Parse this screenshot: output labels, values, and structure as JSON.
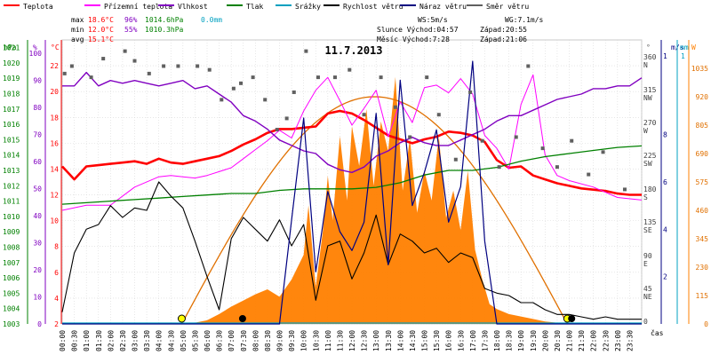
{
  "chart_data": {
    "type": "line",
    "title": "11.7.2013",
    "legend": [
      {
        "name": "Teplota",
        "color": "#ff0000"
      },
      {
        "name": "Přízemní teplota",
        "color": "#ff00ff"
      },
      {
        "name": "Vlhkost",
        "color": "#8000c0"
      },
      {
        "name": "Tlak",
        "color": "#008000"
      },
      {
        "name": "Srážky",
        "color": "#00a0c0"
      },
      {
        "name": "Rychlost větru",
        "color": "#000000"
      },
      {
        "name": "Náraz větru",
        "color": "#000080"
      },
      {
        "name": "Směr větru",
        "color": "#606060"
      }
    ],
    "stats": {
      "max": {
        "label": "max",
        "temp": "18.6°C",
        "hum": "96%",
        "press": "1014.6hPa",
        "rain": "0.0mm"
      },
      "min": {
        "label": "min",
        "temp": "12.0°C",
        "hum": "55%",
        "press": "1010.3hPa"
      },
      "avg": {
        "label": "avg",
        "temp": "15.1°C"
      },
      "ws": "WS:5m/s",
      "wg": "WG:7.1m/s",
      "sun_rise": "Slunce Východ:04:57",
      "sun_set": "Západ:20:55",
      "moon_rise": "Měsíc  Východ:7:28",
      "moon_set": "Západ:21:06"
    },
    "axis_units": {
      "press": "hPa",
      "hum": "%",
      "temp": "°C",
      "dir": "°",
      "wind": "m/s",
      "rain": "mm",
      "solar": "W",
      "time": "čas"
    },
    "pressure_ticks": [
      "1021",
      "1020",
      "1019",
      "1018",
      "1017",
      "1016",
      "1015",
      "1014",
      "1013",
      "1012",
      "1011",
      "1010",
      "1009",
      "1008",
      "1007",
      "1006",
      "1005",
      "1004",
      "1003"
    ],
    "humidity_ticks": [
      "100",
      "90",
      "80",
      "70",
      "60",
      "50",
      "40",
      "30",
      "20",
      "10",
      "0"
    ],
    "temp_ticks": [
      "22",
      "20",
      "18",
      "16",
      "14",
      "12",
      "10",
      "8",
      "6",
      "4",
      "2"
    ],
    "dir_ticks": [
      "360",
      "N",
      "315",
      "NW",
      "270",
      "W",
      "225",
      "SW",
      "180",
      "S",
      "135",
      "SE",
      "90",
      "E",
      "45",
      "NE",
      "0"
    ],
    "wind_ticks": [
      "1",
      "8",
      "6",
      "4",
      "2"
    ],
    "rain_ticks": [
      "1"
    ],
    "solar_ticks": [
      "1035",
      "920",
      "805",
      "690",
      "575",
      "460",
      "345",
      "230",
      "115",
      "0"
    ],
    "time_labels": [
      "00:00",
      "00:30",
      "01:00",
      "01:30",
      "02:00",
      "02:30",
      "03:00",
      "03:30",
      "04:00",
      "04:30",
      "05:00",
      "05:30",
      "06:00",
      "06:30",
      "07:00",
      "07:30",
      "08:00",
      "08:30",
      "09:00",
      "09:30",
      "10:00",
      "10:30",
      "11:00",
      "11:30",
      "12:00",
      "12:30",
      "13:00",
      "13:30",
      "14:00",
      "14:30",
      "15:00",
      "15:30",
      "16:00",
      "16:30",
      "17:00",
      "17:30",
      "18:00",
      "18:30",
      "19:00",
      "19:30",
      "20:00",
      "20:30",
      "21:00",
      "21:30",
      "22:00",
      "22:30",
      "23:00",
      "23:30"
    ],
    "ranges": {
      "temp": [
        2,
        24
      ],
      "hum": [
        0,
        105
      ],
      "press": [
        1003,
        1021.5
      ],
      "dir": [
        0,
        380
      ],
      "wind": [
        0,
        12
      ],
      "solar": [
        0,
        1150
      ]
    },
    "series": [
      {
        "name": "Teplota",
        "hours": [
          0,
          0.5,
          1,
          1.5,
          2,
          2.5,
          3,
          3.5,
          4,
          4.5,
          5,
          5.5,
          6,
          6.5,
          7,
          7.5,
          8,
          8.5,
          9,
          9.5,
          10,
          10.5,
          11,
          11.5,
          12,
          12.5,
          13,
          13.5,
          14,
          14.5,
          15,
          15.5,
          16,
          16.5,
          17,
          17.5,
          18,
          18.5,
          19,
          19.5,
          20,
          20.5,
          21,
          21.5,
          22,
          22.5,
          23,
          23.5,
          24
        ],
        "values": [
          14.2,
          13.2,
          14.2,
          14.3,
          14.4,
          14.5,
          14.6,
          14.4,
          14.8,
          14.5,
          14.4,
          14.6,
          14.8,
          15.0,
          15.4,
          15.9,
          16.3,
          16.8,
          17.1,
          17.1,
          17.2,
          17.3,
          18.3,
          18.5,
          18.3,
          17.8,
          17.2,
          16.6,
          16.3,
          16.0,
          16.3,
          16.5,
          16.9,
          16.8,
          16.6,
          16.1,
          14.7,
          14.1,
          14.2,
          13.5,
          13.2,
          12.9,
          12.7,
          12.5,
          12.4,
          12.3,
          12.1,
          12.0,
          12.0
        ]
      },
      {
        "name": "Přízemní teplota",
        "hours": [
          0,
          1,
          2,
          3,
          4,
          4.5,
          5,
          5.5,
          6,
          6.5,
          7,
          7.5,
          8,
          8.5,
          9,
          9.5,
          10,
          10.5,
          11,
          11.5,
          12,
          12.5,
          13,
          13.5,
          14,
          14.5,
          15,
          15.5,
          16,
          16.5,
          17,
          17.5,
          18,
          18.5,
          19,
          19.5,
          20,
          20.5,
          21,
          22,
          23,
          24
        ],
        "values": [
          10.8,
          11.2,
          11.2,
          12.6,
          13.4,
          13.5,
          13.4,
          13.3,
          13.5,
          13.8,
          14.1,
          14.8,
          15.5,
          16.2,
          17.0,
          16.4,
          18.5,
          20.1,
          21.1,
          19.3,
          17.4,
          18.7,
          20.1,
          16.5,
          19.2,
          17.6,
          20.3,
          20.5,
          19.9,
          21.0,
          19.8,
          16.6,
          15.6,
          14.0,
          19.0,
          21.3,
          15.1,
          13.5,
          13.1,
          12.6,
          11.8,
          11.6
        ]
      },
      {
        "name": "Vlhkost",
        "hours": [
          0,
          0.5,
          1,
          1.5,
          2,
          2.5,
          3,
          3.5,
          4,
          4.5,
          5,
          5.5,
          6,
          6.5,
          7,
          7.5,
          8,
          8.5,
          9,
          9.5,
          10,
          10.5,
          11,
          11.5,
          12,
          12.5,
          13,
          13.5,
          14,
          14.5,
          15,
          15.5,
          16,
          16.5,
          17,
          17.5,
          18,
          18.5,
          19,
          19.5,
          20,
          20.5,
          21,
          21.5,
          22,
          22.5,
          23,
          23.5,
          24
        ],
        "values": [
          88,
          88,
          93,
          88,
          90,
          89,
          90,
          89,
          88,
          89,
          90,
          87,
          88,
          85,
          82,
          77,
          75,
          72,
          68,
          66,
          64,
          63,
          59,
          57,
          56,
          58,
          62,
          64,
          67,
          69,
          67,
          66,
          66,
          68,
          70,
          72,
          75,
          77,
          77,
          79,
          81,
          83,
          84,
          85,
          87,
          87,
          88,
          88,
          91
        ]
      },
      {
        "name": "Tlak",
        "hours": [
          0,
          1,
          2,
          3,
          4,
          5,
          6,
          7,
          8,
          9,
          10,
          11,
          12,
          13,
          14,
          15,
          16,
          17,
          18,
          19,
          20,
          21,
          22,
          23,
          24
        ],
        "values": [
          1010.8,
          1010.9,
          1011.0,
          1011.1,
          1011.2,
          1011.3,
          1011.4,
          1011.5,
          1011.5,
          1011.7,
          1011.8,
          1011.8,
          1011.8,
          1011.9,
          1012.2,
          1012.7,
          1013.0,
          1013.0,
          1013.2,
          1013.6,
          1013.9,
          1014.1,
          1014.3,
          1014.5,
          1014.6
        ]
      },
      {
        "name": "Srážky",
        "hours": [
          0,
          24
        ],
        "values": [
          0,
          0
        ]
      },
      {
        "name": "Rychlost větru",
        "hours": [
          0,
          0.5,
          1,
          1.5,
          2,
          2.5,
          3,
          3.5,
          4,
          4.5,
          5,
          5.5,
          6,
          6.5,
          7,
          7.5,
          8,
          8.5,
          9,
          9.5,
          10,
          10.5,
          11,
          11.5,
          12,
          12.5,
          13,
          13.5,
          14,
          14.5,
          15,
          15.5,
          16,
          16.5,
          17,
          17.5,
          18,
          18.5,
          19,
          19.5,
          20,
          20.5,
          21,
          21.5,
          22,
          22.5,
          23,
          23.5,
          24
        ],
        "values": [
          0.5,
          3.0,
          4.0,
          4.2,
          5.0,
          4.5,
          4.9,
          4.8,
          6.0,
          5.4,
          4.9,
          3.5,
          2.0,
          0.6,
          3.6,
          4.5,
          4.0,
          3.5,
          4.4,
          3.3,
          4.2,
          1.0,
          3.3,
          3.5,
          1.9,
          3.0,
          4.6,
          2.5,
          3.8,
          3.5,
          3.0,
          3.2,
          2.6,
          3.0,
          2.8,
          1.5,
          1.3,
          1.2,
          0.9,
          0.9,
          0.6,
          0.4,
          0.4,
          0.3,
          0.2,
          0.3,
          0.2,
          0.2,
          0.2
        ]
      },
      {
        "name": "Náraz větru",
        "hours": [
          0,
          4,
          8,
          9,
          9.5,
          10,
          10.5,
          11,
          11.5,
          12,
          12.5,
          13,
          13.5,
          14,
          14.5,
          15,
          15.5,
          16,
          16.5,
          17,
          17.5,
          18,
          19,
          20,
          21,
          22,
          24
        ],
        "values": [
          0,
          0,
          0,
          0,
          4.4,
          8.7,
          2.2,
          5.6,
          3.9,
          3.1,
          4.3,
          8.9,
          2.5,
          10.3,
          5.0,
          6.4,
          8.2,
          4.3,
          5.8,
          11.1,
          3.5,
          0,
          0,
          0,
          0,
          0,
          0
        ]
      },
      {
        "name": "Směr větru",
        "hours": [
          0.1,
          0.4,
          1.2,
          1.7,
          2.6,
          3.0,
          3.6,
          4.2,
          4.8,
          5.6,
          6.1,
          6.6,
          7.1,
          7.4,
          7.9,
          8.4,
          8.9,
          9.3,
          9.6,
          10.1,
          10.6,
          11.3,
          11.9,
          12.5,
          13.2,
          13.8,
          14.4,
          15.1,
          15.6,
          16.3,
          16.9,
          17.4,
          18.1,
          18.8,
          19.3,
          19.9,
          20.5,
          21.1,
          21.8,
          22.4,
          23.3
        ],
        "values": [
          335,
          345,
          330,
          355,
          365,
          352,
          335,
          345,
          345,
          345,
          340,
          300,
          315,
          322,
          330,
          300,
          260,
          275,
          310,
          365,
          330,
          330,
          340,
          280,
          330,
          290,
          250,
          330,
          280,
          220,
          310,
          245,
          210,
          250,
          345,
          235,
          210,
          245,
          200,
          230,
          180
        ]
      }
    ],
    "solar_radiation": {
      "hours": [
        5,
        5.5,
        6,
        6.5,
        7,
        7.5,
        8,
        8.5,
        9,
        9.5,
        10,
        10.2,
        10.5,
        10.8,
        11,
        11.2,
        11.5,
        11.8,
        12,
        12.3,
        12.6,
        12.9,
        13.2,
        13.5,
        13.8,
        14.1,
        14.4,
        14.7,
        15,
        15.3,
        15.6,
        15.9,
        16.2,
        16.5,
        16.8,
        17.1,
        17.4,
        17.7,
        18,
        18.5,
        19,
        19.5,
        20,
        20.5,
        21
      ],
      "values": [
        0,
        5,
        15,
        40,
        70,
        95,
        120,
        140,
        110,
        180,
        280,
        480,
        150,
        380,
        600,
        420,
        760,
        500,
        800,
        640,
        870,
        560,
        820,
        700,
        1000,
        540,
        750,
        450,
        620,
        500,
        760,
        430,
        540,
        380,
        620,
        300,
        180,
        80,
        60,
        40,
        30,
        20,
        10,
        5,
        0
      ]
    },
    "theoretical_radiation": {
      "sunrise_hour": 4.95,
      "sunset_hour": 20.92,
      "peak_hour": 12.9,
      "peak_value": 920
    },
    "sun_markers": {
      "sunrise_hour": 4.95,
      "sunset_hour": 20.92
    },
    "moon_markers": {
      "rise_hour": 7.47,
      "set_hour": 21.1
    }
  }
}
